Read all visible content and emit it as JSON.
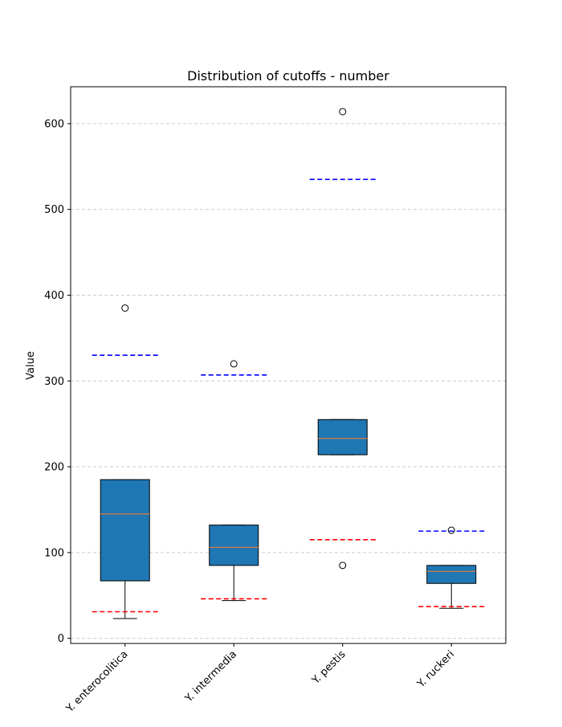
{
  "chart_data": {
    "type": "box",
    "title": "Distribution of cutoffs - number",
    "xlabel": "",
    "ylabel": "Value",
    "ylim": [
      -6,
      643
    ],
    "yticks": [
      0,
      100,
      200,
      300,
      400,
      500,
      600
    ],
    "grid": "horizontal dashed",
    "categories": [
      "Y. enterocolitica",
      "Y. intermedia",
      "Y. pestis",
      "Y. ruckeri"
    ],
    "boxes": [
      {
        "category": "Y. enterocolitica",
        "whisker_low": 23,
        "q1": 67,
        "median": 145,
        "q3": 185,
        "whisker_high": 185,
        "outliers": [
          385
        ],
        "upper_threshold": 330,
        "lower_threshold": 31
      },
      {
        "category": "Y. intermedia",
        "whisker_low": 44,
        "q1": 85,
        "median": 106,
        "q3": 132,
        "whisker_high": 132,
        "outliers": [
          320
        ],
        "upper_threshold": 307,
        "lower_threshold": 46
      },
      {
        "category": "Y. pestis",
        "whisker_low": 214,
        "q1": 214,
        "median": 233,
        "q3": 255,
        "whisker_high": 255,
        "outliers": [
          85,
          614
        ],
        "upper_threshold": 535,
        "lower_threshold": 115
      },
      {
        "category": "Y. ruckeri",
        "whisker_low": 35,
        "q1": 64,
        "median": 78,
        "q3": 85,
        "whisker_high": 85,
        "outliers": [
          126
        ],
        "upper_threshold": 125,
        "lower_threshold": 37
      }
    ],
    "colors": {
      "box_fill": "#1f77b4",
      "median": "#e07b39",
      "upper_threshold": "#0000ff",
      "lower_threshold": "#ff0000",
      "grid": "#cccccc"
    }
  }
}
